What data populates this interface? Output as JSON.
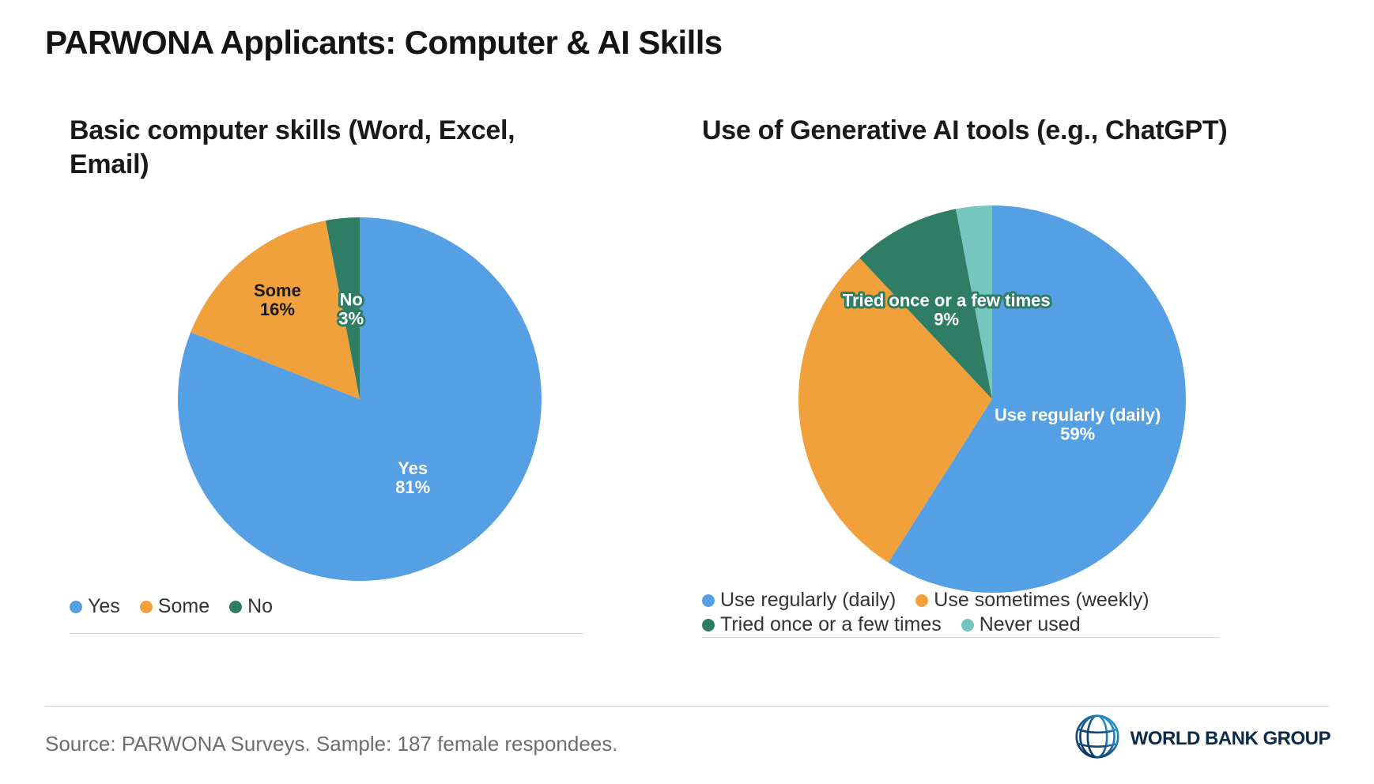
{
  "page": {
    "title": "PARWONA Applicants: Computer & AI Skills"
  },
  "footer": {
    "source": "Source: PARWONA Surveys. Sample: 187 female respondees.",
    "logo_text": "WORLD BANK GROUP",
    "logo_color": "#0a2a4a"
  },
  "colors": {
    "blue": "#55a0e4",
    "orange": "#f0a13b",
    "dark_green": "#2f7d64",
    "light_teal": "#74c6be",
    "title_text": "#141414",
    "legend_text": "#333333",
    "source_text": "#6e6e6e"
  },
  "chart_data": [
    {
      "type": "pie",
      "title": "Basic computer skills (Word, Excel, Email)",
      "categories": [
        "Yes",
        "Some",
        "No"
      ],
      "values": [
        81,
        16,
        3
      ],
      "unit": "%",
      "legend_position": "bottom",
      "start_angle_deg": 0,
      "direction": "clockwise",
      "slices": [
        {
          "label": "Yes",
          "value": 81,
          "color": "#55a0e4",
          "label_show": true,
          "label_lines": [
            "Yes",
            "81%"
          ],
          "label_color": "#ffffff",
          "label_halo": "#55a0e4",
          "label_r": 0.52
        },
        {
          "label": "Some",
          "value": 16,
          "color": "#f0a13b",
          "label_show": true,
          "label_lines": [
            "Some",
            "16%"
          ],
          "label_color": "#1a1a1a",
          "label_halo": "#f0a13b",
          "label_r": 0.71
        },
        {
          "label": "No",
          "value": 3,
          "color": "#2f7d64",
          "label_show": true,
          "label_lines": [
            "No",
            "3%"
          ],
          "label_color": "#ffffff",
          "label_halo": "#2f7d64",
          "label_r": 0.5
        }
      ]
    },
    {
      "type": "pie",
      "title": "Use of Generative AI tools (e.g., ChatGPT)",
      "categories": [
        "Use regularly (daily)",
        "Use sometimes (weekly)",
        "Tried once or a few times",
        "Never used"
      ],
      "values": [
        59,
        29,
        9,
        3
      ],
      "unit": "%",
      "legend_position": "bottom",
      "start_angle_deg": 0,
      "direction": "clockwise",
      "slices": [
        {
          "label": "Use regularly (daily)",
          "value": 59,
          "color": "#55a0e4",
          "label_show": true,
          "label_lines": [
            "Use regularly (daily)",
            "59%"
          ],
          "label_color": "#ffffff",
          "label_halo": "#55a0e4",
          "label_r": 0.46
        },
        {
          "label": "Use sometimes (weekly)",
          "value": 29,
          "color": "#f0a13b",
          "label_show": false,
          "label_lines": [],
          "label_color": "#1a1a1a",
          "label_halo": "#f0a13b",
          "label_r": 0.6
        },
        {
          "label": "Tried once or a few times",
          "value": 9,
          "color": "#2f7d64",
          "label_show": true,
          "label_lines": [
            "Tried once or a few times",
            "9%"
          ],
          "label_color": "#ffffff",
          "label_halo": "#2f7d64",
          "label_r": 0.52
        },
        {
          "label": "Never used",
          "value": 3,
          "color": "#74c6be",
          "label_show": false,
          "label_lines": [],
          "label_color": "#ffffff",
          "label_halo": "#74c6be",
          "label_r": 0.6
        }
      ]
    }
  ]
}
